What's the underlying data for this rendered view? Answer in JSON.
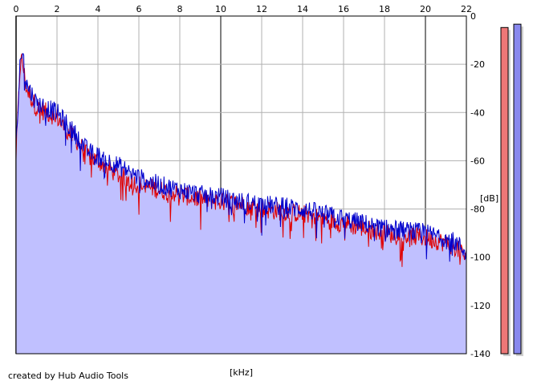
{
  "footer": {
    "credit": "created by Hub Audio Tools"
  },
  "colors": {
    "left_channel": "#e00000",
    "right_channel": "#0000cc",
    "fill": "#c0c0ff",
    "grid": "#b0b0b0",
    "major_grid": "#808080",
    "meter_left": "#ee7777",
    "meter_right": "#8888ee"
  },
  "chart_data": {
    "type": "line",
    "xlabel": "[kHz]",
    "ylabel": "[dB]",
    "xlim": [
      0,
      22
    ],
    "ylim": [
      -140,
      0
    ],
    "x_ticks": [
      "0",
      "2",
      "4",
      "6",
      "8",
      "10",
      "12",
      "14",
      "16",
      "18",
      "20",
      "22"
    ],
    "y_ticks": [
      "0",
      "-20",
      "-40",
      "-60",
      "-80",
      "-100",
      "-120",
      "-140"
    ],
    "grid": true,
    "x": [
      0,
      0.2,
      0.3,
      0.5,
      1.0,
      1.5,
      2.0,
      2.5,
      3.0,
      3.5,
      4.0,
      5.0,
      6.0,
      7.0,
      8.0,
      9.0,
      10.0,
      11.0,
      12.0,
      13.0,
      14.0,
      15.0,
      16.0,
      17.0,
      18.0,
      19.0,
      20.0,
      21.0,
      21.5,
      22.0
    ],
    "series": [
      {
        "values": [
          -58,
          -20,
          -18,
          -30,
          -38,
          -40,
          -42,
          -48,
          -52,
          -58,
          -60,
          -66,
          -70,
          -72,
          -74,
          -76,
          -77,
          -78,
          -80,
          -81,
          -82,
          -84,
          -86,
          -88,
          -90,
          -91,
          -92,
          -94,
          -96,
          -100
        ]
      },
      {
        "values": [
          -55,
          -18,
          -15,
          -28,
          -36,
          -38,
          -40,
          -45,
          -50,
          -56,
          -58,
          -62,
          -67,
          -70,
          -72,
          -74,
          -75,
          -77,
          -78,
          -79,
          -80,
          -82,
          -84,
          -86,
          -88,
          -89,
          -90,
          -92,
          -94,
          -98
        ]
      }
    ],
    "meters": {
      "left_level": 0.98,
      "right_level": 0.99
    }
  }
}
